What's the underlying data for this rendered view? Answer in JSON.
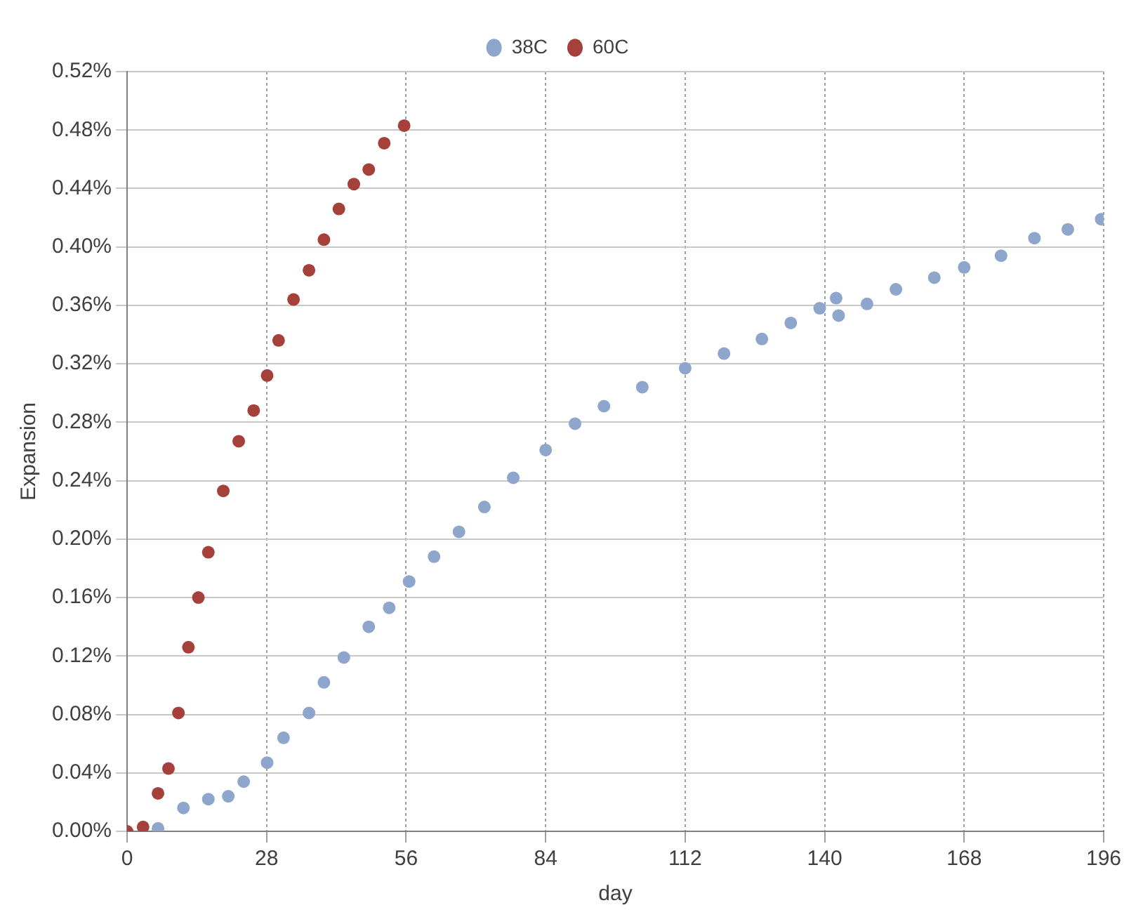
{
  "chart_data": {
    "type": "scatter",
    "xlabel": "day",
    "ylabel": "Expansion",
    "xlim": [
      0,
      196
    ],
    "xticks": [
      0,
      28,
      56,
      84,
      112,
      140,
      168,
      196
    ],
    "ylim": [
      0,
      0.52
    ],
    "yticks": [
      {
        "value": 0,
        "label": "0.00%"
      },
      {
        "value": 0.04,
        "label": "0.04%"
      },
      {
        "value": 0.08,
        "label": "0.08%"
      },
      {
        "value": 0.12,
        "label": "0.12%"
      },
      {
        "value": 0.16,
        "label": "0.16%"
      },
      {
        "value": 0.2,
        "label": "0.20%"
      },
      {
        "value": 0.24,
        "label": "0.24%"
      },
      {
        "value": 0.28,
        "label": "0.28%"
      },
      {
        "value": 0.32,
        "label": "0.32%"
      },
      {
        "value": 0.36,
        "label": "0.36%"
      },
      {
        "value": 0.4,
        "label": "0.40%"
      },
      {
        "value": 0.44,
        "label": "0.44%"
      },
      {
        "value": 0.48,
        "label": "0.48%"
      },
      {
        "value": 0.52,
        "label": "0.52%"
      }
    ],
    "grid": true,
    "legend": "top",
    "marker": "circle",
    "series": [
      {
        "name": "38C",
        "color": "#8ea5cc",
        "x": [
          6.2,
          11.3,
          16.3,
          20.3,
          23.4,
          28.1,
          31.4,
          36.5,
          39.5,
          43.5,
          48.5,
          52.6,
          56.6,
          61.6,
          66.6,
          71.7,
          77.5,
          84,
          89.9,
          95.7,
          103.4,
          112,
          119.8,
          127.4,
          133.2,
          139,
          142.3,
          142.8,
          148.5,
          154.3,
          162,
          168,
          175.4,
          182.1,
          188.8,
          195.5
        ],
        "values": [
          0.002,
          0.016,
          0.022,
          0.024,
          0.034,
          0.047,
          0.064,
          0.081,
          0.102,
          0.119,
          0.14,
          0.153,
          0.171,
          0.188,
          0.205,
          0.222,
          0.242,
          0.261,
          0.279,
          0.291,
          0.304,
          0.317,
          0.327,
          0.337,
          0.348,
          0.358,
          0.365,
          0.353,
          0.361,
          0.371,
          0.379,
          0.386,
          0.394,
          0.406,
          0.412,
          0.419
        ]
      },
      {
        "name": "60C",
        "color": "#a5403b",
        "x": [
          0,
          3.2,
          6.2,
          8.3,
          10.3,
          12.3,
          14.3,
          16.3,
          19.3,
          22.4,
          25.4,
          28.1,
          30.4,
          33.4,
          36.5,
          39.5,
          42.5,
          45.5,
          48.5,
          51.6,
          55.6
        ],
        "values": [
          0,
          0.003,
          0.026,
          0.043,
          0.081,
          0.126,
          0.16,
          0.191,
          0.233,
          0.267,
          0.288,
          0.312,
          0.336,
          0.364,
          0.384,
          0.405,
          0.426,
          0.443,
          0.453,
          0.471,
          0.483
        ]
      }
    ]
  }
}
